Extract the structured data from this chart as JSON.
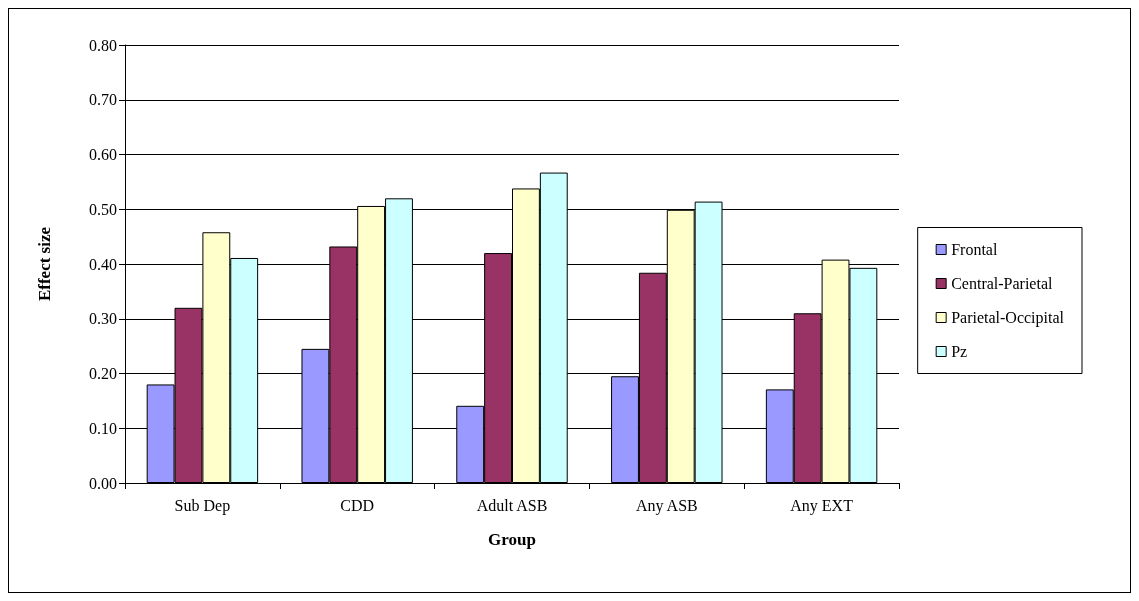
{
  "chart_data": {
    "type": "bar",
    "xlabel": "Group",
    "ylabel": "Effect size",
    "categories": [
      "Sub Dep",
      "CDD",
      "Adult ASB",
      "Any ASB",
      "Any EXT"
    ],
    "series": [
      {
        "name": "Frontal",
        "color": "#9999ff",
        "values": [
          0.18,
          0.245,
          0.141,
          0.195,
          0.171
        ]
      },
      {
        "name": "Central-Parietal",
        "color": "#993366",
        "values": [
          0.32,
          0.432,
          0.42,
          0.384,
          0.31
        ]
      },
      {
        "name": "Parietal-Occipital",
        "color": "#ffffcc",
        "values": [
          0.458,
          0.506,
          0.538,
          0.499,
          0.408
        ]
      },
      {
        "name": "Pz",
        "color": "#ccffff",
        "values": [
          0.411,
          0.52,
          0.567,
          0.514,
          0.393
        ]
      }
    ],
    "ylim": [
      0,
      0.8
    ],
    "yticks": [
      {
        "value": 0,
        "label": "0.00"
      },
      {
        "value": 0.1,
        "label": "0.10"
      },
      {
        "value": 0.2,
        "label": "0.20"
      },
      {
        "value": 0.3,
        "label": "0.30"
      },
      {
        "value": 0.4,
        "label": "0.40"
      },
      {
        "value": 0.5,
        "label": "0.50"
      },
      {
        "value": 0.6,
        "label": "0.60"
      },
      {
        "value": 0.7,
        "label": "0.70"
      },
      {
        "value": 0.8,
        "label": "0.80"
      }
    ],
    "grid": "y",
    "legend": "right"
  }
}
